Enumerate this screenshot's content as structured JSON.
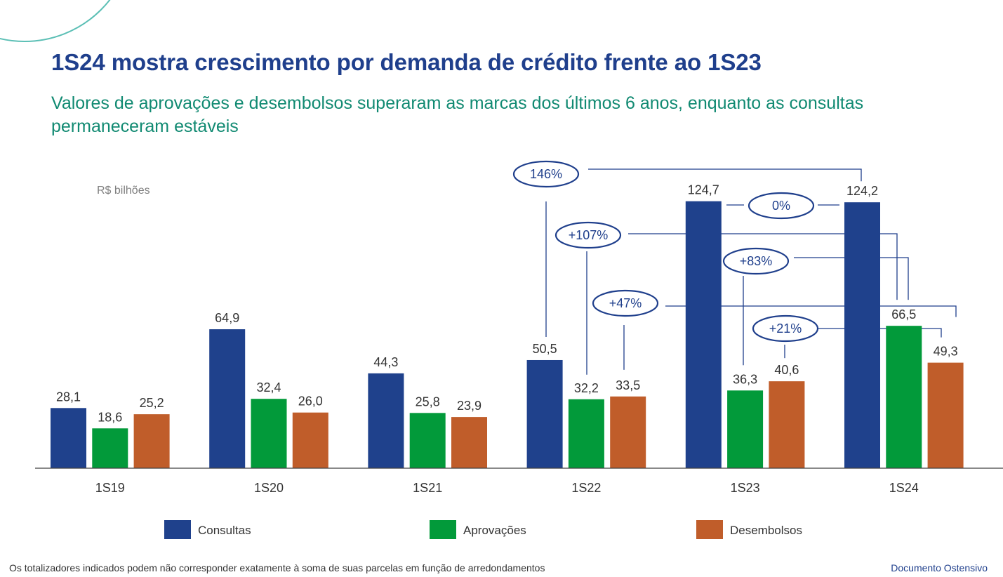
{
  "header": {
    "title": "1S24 mostra crescimento por demanda de crédito frente ao 1S23",
    "subtitle": "Valores de aprovações e desembolsos superaram as marcas dos últimos 6 anos, enquanto as consultas permaneceram estáveis"
  },
  "footer": {
    "note": "Os totalizadores indicados podem não corresponder exatamente à soma de suas parcelas em função de arredondamentos",
    "classification": "Documento Ostensivo"
  },
  "chart_data": {
    "type": "bar",
    "title": "1S24 mostra crescimento por demanda de crédito frente ao 1S23",
    "unit_label": "R$ bilhões",
    "xlabel": "",
    "ylabel": "R$ bilhões",
    "ylim": [
      0,
      130
    ],
    "grid": false,
    "legend_position": "bottom",
    "categories": [
      "1S19",
      "1S20",
      "1S21",
      "1S22",
      "1S23",
      "1S24"
    ],
    "series": [
      {
        "name": "Consultas",
        "color": "#1f418c",
        "values": [
          28.1,
          64.9,
          44.3,
          50.5,
          124.7,
          124.2
        ],
        "labels": [
          "28,1",
          "64,9",
          "44,3",
          "50,5",
          "124,7",
          "124,2"
        ]
      },
      {
        "name": "Aprovações",
        "color": "#029a3a",
        "values": [
          18.6,
          32.4,
          25.8,
          32.2,
          36.3,
          66.5
        ],
        "labels": [
          "18,6",
          "32,4",
          "25,8",
          "32,2",
          "36,3",
          "66,5"
        ]
      },
      {
        "name": "Desembolsos",
        "color": "#c05d2a",
        "values": [
          25.2,
          26.0,
          23.9,
          33.5,
          40.6,
          49.3
        ],
        "labels": [
          "25,2",
          "26,0",
          "23,9",
          "33,5",
          "40,6",
          "49,3"
        ]
      }
    ],
    "annotations": [
      {
        "label": "146%",
        "series": "Consultas",
        "from": "1S22",
        "to": "1S24"
      },
      {
        "label": "0%",
        "series": "Consultas",
        "from": "1S23",
        "to": "1S24"
      },
      {
        "label": "+107%",
        "series": "Aprovações",
        "from": "1S22",
        "to": "1S24"
      },
      {
        "label": "+83%",
        "series": "Aprovações",
        "from": "1S23",
        "to": "1S24"
      },
      {
        "label": "+47%",
        "series": "Desembolsos",
        "from": "1S22",
        "to": "1S24"
      },
      {
        "label": "+21%",
        "series": "Desembolsos",
        "from": "1S23",
        "to": "1S24"
      }
    ]
  }
}
